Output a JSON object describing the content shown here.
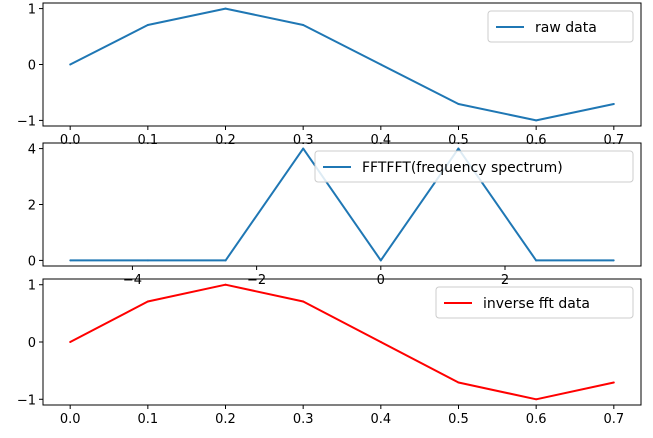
{
  "chart_data": [
    {
      "type": "line",
      "x": [
        0.0,
        0.1,
        0.2,
        0.3,
        0.4,
        0.5,
        0.6,
        0.7
      ],
      "series": [
        {
          "name": "raw data",
          "color": "#1f77b4",
          "values": [
            0.0,
            0.707,
            1.0,
            0.707,
            0.0,
            -0.707,
            -1.0,
            -0.707
          ]
        }
      ],
      "xlim": [
        -0.035,
        0.735
      ],
      "ylim": [
        -1.1,
        1.1
      ],
      "xticks": [
        "0.0",
        "0.1",
        "0.2",
        "0.3",
        "0.4",
        "0.5",
        "0.6",
        "0.7"
      ],
      "yticks": [
        "−1",
        "0",
        "1"
      ],
      "legend_position": "top-right",
      "grid": false
    },
    {
      "type": "line",
      "x": [
        -5.0,
        -3.75,
        -2.5,
        -1.25,
        0.0,
        1.25,
        2.5,
        3.75
      ],
      "series": [
        {
          "name": "FFTFFT(frequency spectrum)",
          "color": "#1f77b4",
          "values": [
            0.0,
            0.0,
            0.0,
            4.0,
            0.0,
            4.0,
            0.0,
            0.0
          ]
        }
      ],
      "xlim": [
        -5.44,
        4.19
      ],
      "ylim": [
        -0.2,
        4.2
      ],
      "xticks": [
        "−4",
        "−2",
        "0",
        "2"
      ],
      "yticks": [
        "0",
        "2",
        "4"
      ],
      "legend_position": "top-right",
      "grid": false
    },
    {
      "type": "line",
      "x": [
        0.0,
        0.1,
        0.2,
        0.3,
        0.4,
        0.5,
        0.6,
        0.7
      ],
      "series": [
        {
          "name": "inverse fft data",
          "color": "#ff0000",
          "values": [
            0.0,
            0.707,
            1.0,
            0.707,
            0.0,
            -0.707,
            -1.0,
            -0.707
          ]
        }
      ],
      "xlim": [
        -0.035,
        0.735
      ],
      "ylim": [
        -1.1,
        1.1
      ],
      "xticks": [
        "0.0",
        "0.1",
        "0.2",
        "0.3",
        "0.4",
        "0.5",
        "0.6",
        "0.7"
      ],
      "yticks": [
        "−1",
        "0",
        "1"
      ],
      "legend_position": "top-right",
      "grid": false
    }
  ]
}
